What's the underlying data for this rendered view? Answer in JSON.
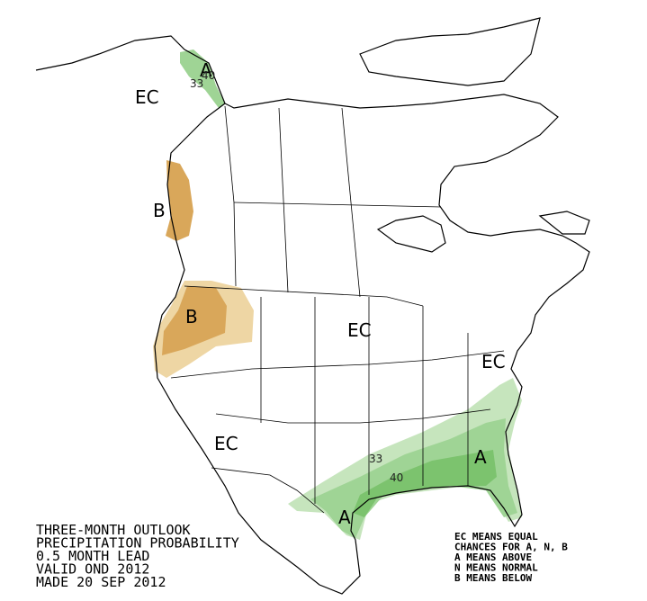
{
  "map_labels": {
    "alaska_ec": "EC",
    "alaska_a": "A",
    "alaska_33": "33",
    "alaska_40": "40",
    "bc_b": "B",
    "northwest_b": "B",
    "central_ec": "EC",
    "northeast_ec": "EC",
    "southwest_ec": "EC",
    "southeast_33": "33",
    "southeast_40": "40",
    "southeast_a": "A",
    "texas_a": "A"
  },
  "title_lines": [
    "THREE-MONTH OUTLOOK",
    "PRECIPITATION PROBABILITY",
    "0.5 MONTH LEAD",
    "VALID OND 2012",
    "MADE 20 SEP 2012"
  ],
  "legend_lines": [
    "EC MEANS EQUAL",
    "CHANCES FOR A, N, B",
    "A MEANS ABOVE",
    "N MEANS NORMAL",
    "B MEANS BELOW"
  ]
}
